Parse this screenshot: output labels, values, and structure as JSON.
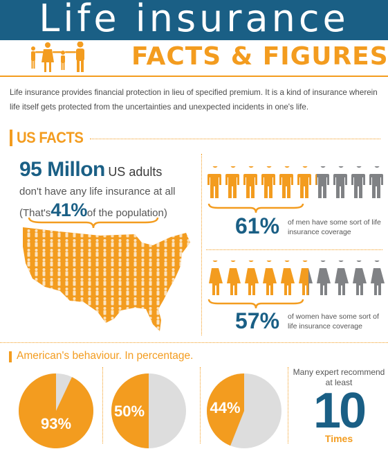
{
  "header": {
    "title": "Life insurance",
    "subtitle": "FACTS & FIGURES"
  },
  "intro": "Life insurance provides financial protection in lieu of specified premium. It is a kind of insurance wherein life itself gets protected from the uncertainties and unexpected incidents in one's life.",
  "us_facts": {
    "heading": "US FACTS",
    "big_number": "95 Millon",
    "big_suffix": "US adults",
    "line2": "don't have any life insurance at all",
    "line3_prefix": "(That's",
    "line3_percent": "41%",
    "line3_suffix": "of the population)"
  },
  "men": {
    "percent": "61%",
    "text": "of men have some sort of life insurance coverage",
    "covered_fraction": 0.61,
    "icon": "man-figure-icon"
  },
  "women": {
    "percent": "57%",
    "text": "of women have some sort of life insurance coverage",
    "covered_fraction": 0.57,
    "icon": "woman-figure-icon"
  },
  "behaviour": {
    "heading": "American's behaviour. In percentage.",
    "pies": [
      {
        "label": "93%",
        "value": 93
      },
      {
        "label": "50%",
        "value": 50
      },
      {
        "label": "44%",
        "value": 44
      }
    ]
  },
  "expert": {
    "text": "Many expert recommend at least",
    "number": "10",
    "unit": "Times"
  },
  "colors": {
    "blue": "#1a5f85",
    "orange": "#f39c1f",
    "gray": "#808285",
    "light_gray": "#dddddd"
  }
}
